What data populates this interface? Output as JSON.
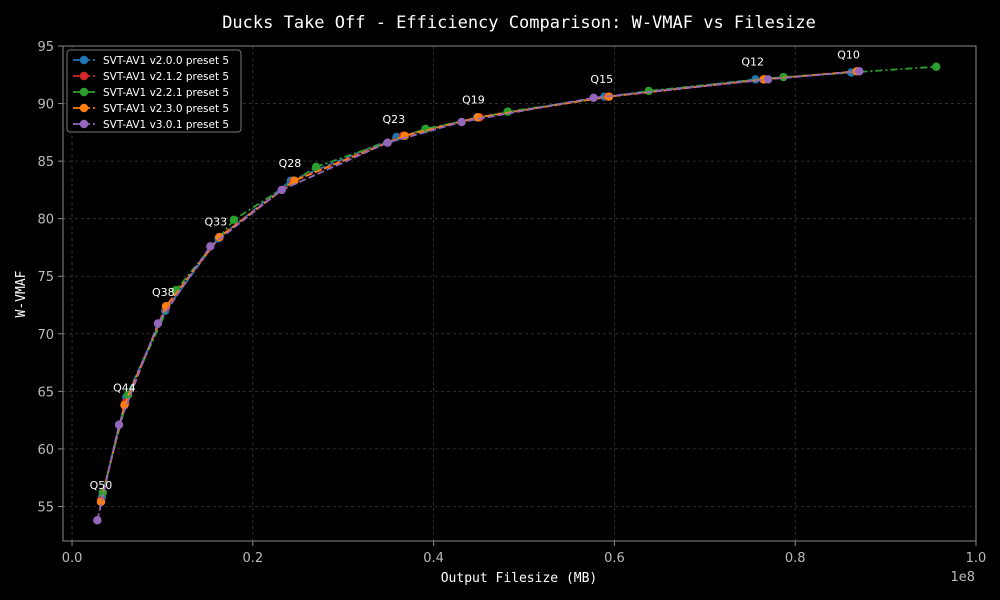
{
  "chart_data": {
    "type": "line",
    "title": "Ducks Take Off - Efficiency Comparison: W-VMAF vs Filesize",
    "xlabel": "Output Filesize (MB)",
    "ylabel": "W-VMAF",
    "x_offset_label": "1e8",
    "xlim": [
      -0.01,
      1.0
    ],
    "ylim": [
      52,
      95
    ],
    "x_ticks": [
      0.0,
      0.2,
      0.4,
      0.6,
      0.8,
      1.0
    ],
    "x_tick_labels": [
      "0.0",
      "0.2",
      "0.4",
      "0.6",
      "0.8",
      "1.0"
    ],
    "y_ticks": [
      55,
      60,
      65,
      70,
      75,
      80,
      85,
      90,
      95
    ],
    "y_tick_labels": [
      "55",
      "60",
      "65",
      "70",
      "75",
      "80",
      "85",
      "90",
      "95"
    ],
    "grid": true,
    "legend_position": "top-left",
    "colors": {
      "background": "#000000",
      "text": "#ffffff",
      "tick_text": "#bbbbbb",
      "grid": "#3a3a3a",
      "axes": "#888888"
    },
    "series": [
      {
        "name": "SVT-AV1 v2.0.0 preset 5",
        "color": "#1f77b4",
        "dash": "dashed",
        "x": [
          0.033,
          0.06,
          0.103,
          0.162,
          0.242,
          0.359,
          0.448,
          0.589,
          0.756,
          0.862
        ],
        "y": [
          55.8,
          64.5,
          72.0,
          78.3,
          83.3,
          87.1,
          88.8,
          90.6,
          92.1,
          92.7
        ]
      },
      {
        "name": "SVT-AV1 v2.1.2 preset 5",
        "color": "#d62728",
        "dash": "dashed",
        "x": [
          0.032,
          0.059,
          0.104,
          0.163,
          0.245,
          0.366,
          0.451,
          0.593,
          0.766,
          0.869
        ],
        "y": [
          55.5,
          64.0,
          72.3,
          78.4,
          83.3,
          87.2,
          88.8,
          90.6,
          92.1,
          92.8
        ]
      },
      {
        "name": "SVT-AV1 v2.2.1 preset 5",
        "color": "#2ca02c",
        "dash": "dashdot",
        "x": [
          0.034,
          0.062,
          0.115,
          0.179,
          0.27,
          0.391,
          0.482,
          0.638,
          0.787,
          0.956
        ],
        "y": [
          56.2,
          64.7,
          73.8,
          79.9,
          84.5,
          87.8,
          89.3,
          91.1,
          92.3,
          93.2
        ]
      },
      {
        "name": "SVT-AV1 v2.3.0 preset 5",
        "color": "#ff7f0e",
        "dash": "dashed",
        "x": [
          0.032,
          0.058,
          0.104,
          0.163,
          0.246,
          0.368,
          0.449,
          0.594,
          0.765,
          0.868
        ],
        "y": [
          55.4,
          63.8,
          72.4,
          78.4,
          83.3,
          87.2,
          88.8,
          90.6,
          92.1,
          92.8
        ]
      },
      {
        "name": "SVT-AV1 v3.0.1 preset 5",
        "color": "#9467bd",
        "dash": "dashed",
        "x": [
          0.028,
          0.052,
          0.095,
          0.153,
          0.232,
          0.349,
          0.431,
          0.577,
          0.77,
          0.871
        ],
        "y": [
          53.8,
          62.1,
          70.9,
          77.6,
          82.5,
          86.6,
          88.4,
          90.5,
          92.1,
          92.8
        ]
      }
    ],
    "annotations": [
      {
        "text": "Q50",
        "x": 0.032,
        "y": 56.5
      },
      {
        "text": "Q44",
        "x": 0.058,
        "y": 65.0
      },
      {
        "text": "Q38",
        "x": 0.101,
        "y": 73.3
      },
      {
        "text": "Q33",
        "x": 0.159,
        "y": 79.4
      },
      {
        "text": "Q28",
        "x": 0.241,
        "y": 84.5
      },
      {
        "text": "Q23",
        "x": 0.356,
        "y": 88.3
      },
      {
        "text": "Q19",
        "x": 0.444,
        "y": 90.0
      },
      {
        "text": "Q15",
        "x": 0.586,
        "y": 91.8
      },
      {
        "text": "Q12",
        "x": 0.753,
        "y": 93.3
      },
      {
        "text": "Q10",
        "x": 0.859,
        "y": 93.9
      }
    ]
  }
}
